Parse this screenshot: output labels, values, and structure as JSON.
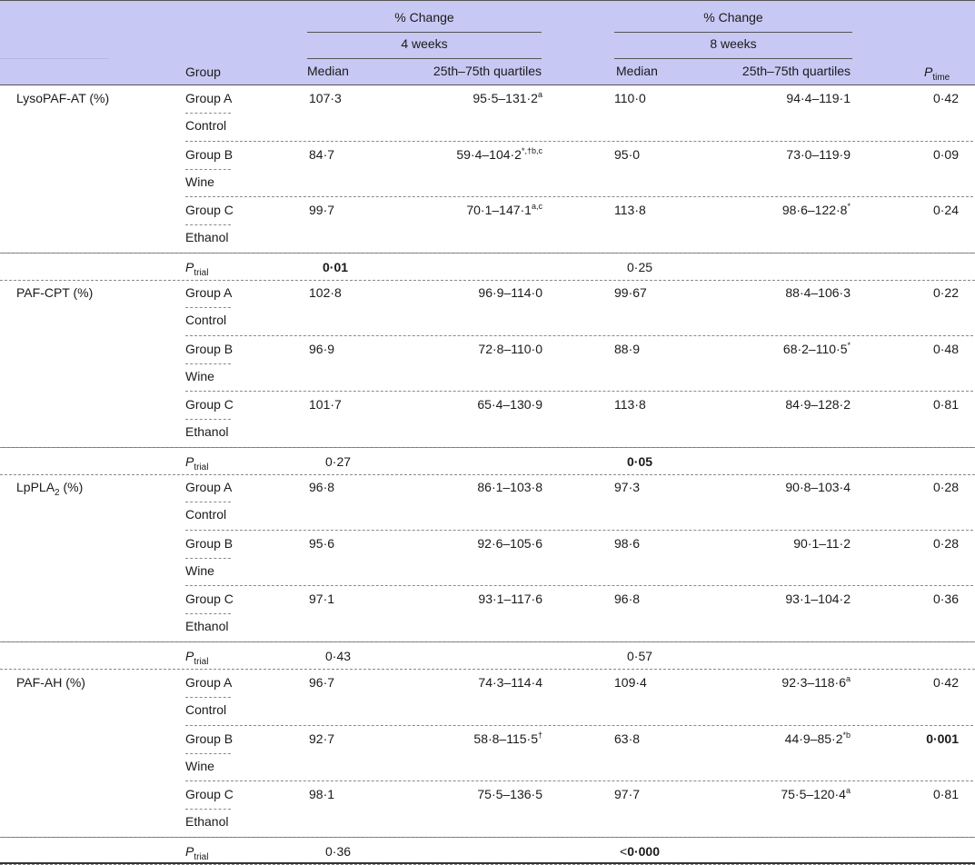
{
  "header": {
    "pct_change_4": "% Change",
    "pct_change_8": "% Change",
    "weeks_4": "4 weeks",
    "weeks_8": "8 weeks",
    "col_group": "Group",
    "col_median_4": "Median",
    "col_quart_4": "25th–75th quartiles",
    "col_median_8": "Median",
    "col_quart_8": "25th–75th quartiles",
    "col_ptime_P": "P",
    "col_ptime_sub": "time"
  },
  "ptrial_label": "P",
  "ptrial_sub": "trial",
  "sections": [
    {
      "label": "LysoPAF-AT (%)",
      "rows": [
        {
          "group": "Group A",
          "sub": "Control",
          "median4": "107·3",
          "quart4": "95·5–131·2",
          "quart4_sup": "a",
          "median8": "110·0",
          "quart8": "94·4–119·1",
          "quart8_sup": "",
          "ptime": "0·42"
        },
        {
          "group": "Group B",
          "sub": "Wine",
          "median4": "84·7",
          "quart4": "59·4–104·2",
          "quart4_sup": "*,†b,c",
          "median8": "95·0",
          "quart8": "73·0–119·9",
          "quart8_sup": "",
          "ptime": "0·09"
        },
        {
          "group": "Group C",
          "sub": "Ethanol",
          "median4": "99·7",
          "quart4": "70·1–147·1",
          "quart4_sup": "a,c",
          "median8": "113·8",
          "quart8": "98·6–122·8",
          "quart8_sup": "*",
          "ptime": "0·24"
        }
      ],
      "ptrial4": "0·01",
      "ptrial8": "0·25"
    },
    {
      "label": "PAF-CPT (%)",
      "rows": [
        {
          "group": "Group A",
          "sub": "Control",
          "median4": "102·8",
          "quart4": "96·9–114·0",
          "quart4_sup": "",
          "median8": "99·67",
          "quart8": "88·4–106·3",
          "quart8_sup": "",
          "ptime": "0·22"
        },
        {
          "group": "Group B",
          "sub": "Wine",
          "median4": "96·9",
          "quart4": "72·8–110·0",
          "quart4_sup": "",
          "median8": "88·9",
          "quart8": "68·2–110·5",
          "quart8_sup": "*",
          "ptime": "0·48"
        },
        {
          "group": "Group C",
          "sub": "Ethanol",
          "median4": "101·7",
          "quart4": "65·4–130·9",
          "quart4_sup": "",
          "median8": "113·8",
          "quart8": "84·9–128·2",
          "quart8_sup": "",
          "ptime": "0·81"
        }
      ],
      "ptrial4": "0·27",
      "ptrial8": "0·05"
    },
    {
      "label": "LpPLA",
      "label_sub": "2",
      "label_suffix": " (%)",
      "rows": [
        {
          "group": "Group A",
          "sub": "Control",
          "median4": "96·8",
          "quart4": "86·1–103·8",
          "quart4_sup": "",
          "median8": "97·3",
          "quart8": "90·8–103·4",
          "quart8_sup": "",
          "ptime": "0·28"
        },
        {
          "group": "Group B",
          "sub": "Wine",
          "median4": "95·6",
          "quart4": "92·6–105·6",
          "quart4_sup": "",
          "median8": "98·6",
          "quart8": "90·1–11·2",
          "quart8_sup": "",
          "ptime": "0·28"
        },
        {
          "group": "Group C",
          "sub": "Ethanol",
          "median4": "97·1",
          "quart4": "93·1–117·6",
          "quart4_sup": "",
          "median8": "96·8",
          "quart8": "93·1–104·2",
          "quart8_sup": "",
          "ptime": "0·36"
        }
      ],
      "ptrial4": "0·43",
      "ptrial8": "0·57"
    },
    {
      "label": "PAF-AH (%)",
      "rows": [
        {
          "group": "Group A",
          "sub": "Control",
          "median4": "96·7",
          "quart4": "74·3–114·4",
          "quart4_sup": "",
          "median8": "109·4",
          "quart8": "92·3–118·6",
          "quart8_sup": "a",
          "ptime": "0·42"
        },
        {
          "group": "Group B",
          "sub": "Wine",
          "median4": "92·7",
          "quart4": "58·8–115·5",
          "quart4_sup": "†",
          "median8": "63·8",
          "quart8": "44·9–85·2",
          "quart8_sup": "*b",
          "ptime": "0·001"
        },
        {
          "group": "Group C",
          "sub": "Ethanol",
          "median4": "98·1",
          "quart4": "75·5–136·5",
          "quart4_sup": "",
          "median8": "97·7",
          "quart8": "75·5–120·4",
          "quart8_sup": "a",
          "ptime": "0·81"
        }
      ],
      "ptrial4": "0·36",
      "ptrial8_prefix": "<",
      "ptrial8": "0·000"
    }
  ]
}
